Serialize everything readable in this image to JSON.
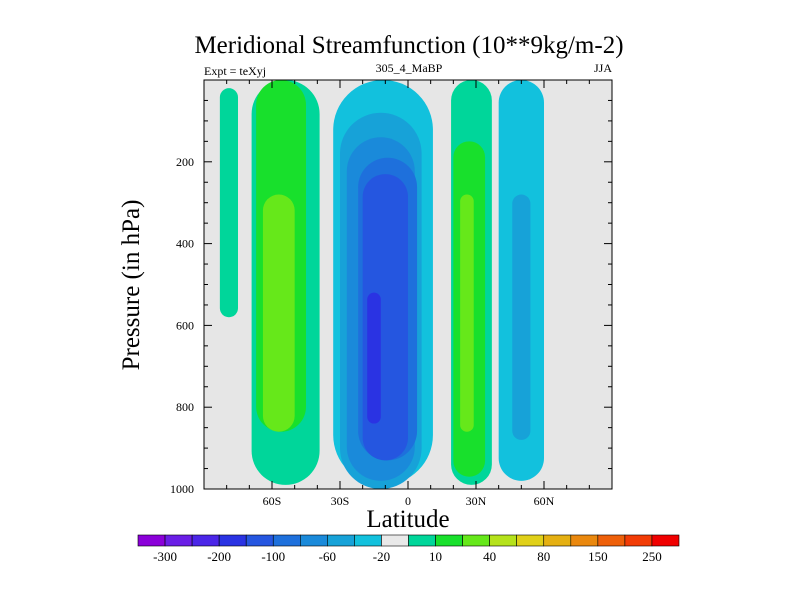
{
  "chart_data": {
    "type": "contour",
    "title": "Meridional Streamfunction (10**9kg/m-2)",
    "left_label": "Expt = teXyj",
    "center_label": "305_4_MaBP",
    "right_label": "JJA",
    "xlabel": "Latitude",
    "ylabel": "Pressure (in hPa)",
    "xlim": [
      -90,
      90
    ],
    "ylim": [
      1000,
      0
    ],
    "x_ticks": [
      {
        "value": -60,
        "label": "60S"
      },
      {
        "value": -30,
        "label": "30S"
      },
      {
        "value": 0,
        "label": "0"
      },
      {
        "value": 30,
        "label": "30N"
      },
      {
        "value": 60,
        "label": "60N"
      }
    ],
    "y_ticks": [
      {
        "value": 200,
        "label": "200"
      },
      {
        "value": 400,
        "label": "400"
      },
      {
        "value": 600,
        "label": "600"
      },
      {
        "value": 800,
        "label": "800"
      },
      {
        "value": 1000,
        "label": "1000"
      }
    ],
    "background_color": "#e6e6e6",
    "cells": [
      {
        "name": "far-south-positive-cell",
        "level": 1,
        "center_lat": -79,
        "center_p": 300,
        "half_width": 4,
        "half_depth": 280
      },
      {
        "name": "southern-positive-cell-outer",
        "level": 1,
        "center_lat": -54,
        "center_p": 470,
        "half_width": 15,
        "half_depth": 520
      },
      {
        "name": "southern-positive-cell-middle",
        "level": 2,
        "center_lat": -56,
        "center_p": 430,
        "half_width": 11,
        "half_depth": 430
      },
      {
        "name": "southern-positive-cell-core",
        "level": 3,
        "center_lat": -57,
        "center_p": 570,
        "half_width": 7,
        "half_depth": 290
      },
      {
        "name": "southern-negative-cell-outer",
        "level": -1,
        "center_lat": -11,
        "center_p": 480,
        "half_width": 22,
        "half_depth": 510
      },
      {
        "name": "southern-negative-cell-2",
        "level": -2,
        "center_lat": -12,
        "center_p": 540,
        "half_width": 18,
        "half_depth": 460
      },
      {
        "name": "southern-negative-cell-3",
        "level": -3,
        "center_lat": -12,
        "center_p": 560,
        "half_width": 15,
        "half_depth": 420
      },
      {
        "name": "southern-negative-cell-4",
        "level": -4,
        "center_lat": -9,
        "center_p": 560,
        "half_width": 13,
        "half_depth": 370
      },
      {
        "name": "southern-negative-cell-5",
        "level": -5,
        "center_lat": -10,
        "center_p": 580,
        "half_width": 10,
        "half_depth": 350
      },
      {
        "name": "southern-negative-cell-core",
        "level": -6,
        "center_lat": -15,
        "center_p": 680,
        "half_width": 3,
        "half_depth": 160
      },
      {
        "name": "northern-positive-cell-outer",
        "level": 1,
        "center_lat": 28,
        "center_p": 470,
        "half_width": 9,
        "half_depth": 520
      },
      {
        "name": "northern-positive-cell-middle",
        "level": 2,
        "center_lat": 27,
        "center_p": 560,
        "half_width": 7,
        "half_depth": 410
      },
      {
        "name": "northern-positive-cell-core",
        "level": 3,
        "center_lat": 26,
        "center_p": 570,
        "half_width": 3,
        "half_depth": 290
      },
      {
        "name": "northern-negative-cell-outer",
        "level": -1,
        "center_lat": 50,
        "center_p": 460,
        "half_width": 10,
        "half_depth": 520
      },
      {
        "name": "northern-negative-cell-inner",
        "level": -2,
        "center_lat": 50,
        "center_p": 580,
        "half_width": 4,
        "half_depth": 300
      }
    ],
    "colorbar": {
      "colors": [
        "#8b00d9",
        "#6a1ee6",
        "#4b26e8",
        "#2a33e3",
        "#2556e0",
        "#1e70dc",
        "#1a8ada",
        "#17a2d8",
        "#12c1dd",
        "#e9e9e9",
        "#00d69a",
        "#18e02c",
        "#66e81a",
        "#b5e21b",
        "#e0d018",
        "#e5b012",
        "#ea880e",
        "#ee600a",
        "#f23c06",
        "#f00000"
      ],
      "zero_index": 9,
      "labels": [
        {
          "after_box": 1,
          "text": "-300"
        },
        {
          "after_box": 3,
          "text": "-200"
        },
        {
          "after_box": 5,
          "text": "-100"
        },
        {
          "after_box": 7,
          "text": "-60"
        },
        {
          "after_box": 9,
          "text": "-20"
        },
        {
          "after_box": 11,
          "text": "10"
        },
        {
          "after_box": 13,
          "text": "40"
        },
        {
          "after_box": 15,
          "text": "80"
        },
        {
          "after_box": 17,
          "text": "150"
        },
        {
          "after_box": 19,
          "text": "250"
        }
      ]
    }
  }
}
